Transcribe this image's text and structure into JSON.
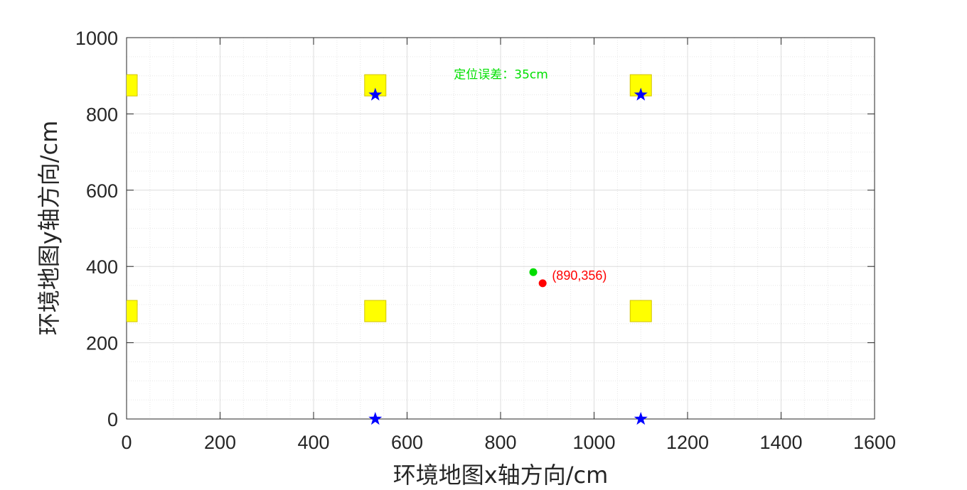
{
  "chart_data": {
    "type": "scatter",
    "title": "",
    "xlabel": "环境地图x轴方向/cm",
    "ylabel": "环境地图y轴方向/cm",
    "xlim": [
      0,
      1600
    ],
    "ylim": [
      0,
      1000
    ],
    "xticks": [
      "0",
      "200",
      "400",
      "600",
      "800",
      "1000",
      "1200",
      "1400",
      "1600"
    ],
    "yticks": [
      "0",
      "200",
      "400",
      "600",
      "800",
      "1000"
    ],
    "grid": true,
    "minor_grid": true,
    "series": [
      {
        "marker": "square",
        "color": "#ffff00",
        "points": [
          [
            0,
            875
          ],
          [
            0,
            283
          ],
          [
            532,
            875
          ],
          [
            532,
            283
          ],
          [
            1100,
            875
          ],
          [
            1100,
            283
          ]
        ]
      },
      {
        "marker": "star",
        "color": "#0000ff",
        "points": [
          [
            532,
            850
          ],
          [
            1100,
            850
          ],
          [
            532,
            0
          ],
          [
            1100,
            0
          ]
        ]
      },
      {
        "marker": "circle",
        "color": "#00dd00",
        "points": [
          [
            870,
            385
          ]
        ]
      },
      {
        "marker": "circle",
        "color": "#ff0000",
        "points": [
          [
            890,
            356
          ]
        ]
      }
    ],
    "annotations": [
      {
        "text": "定位误差：35cm",
        "x": 700,
        "y": 893,
        "color": "#00e000"
      },
      {
        "text": "(890,356)",
        "x": 910,
        "y": 365,
        "color": "#ff0000"
      }
    ]
  }
}
